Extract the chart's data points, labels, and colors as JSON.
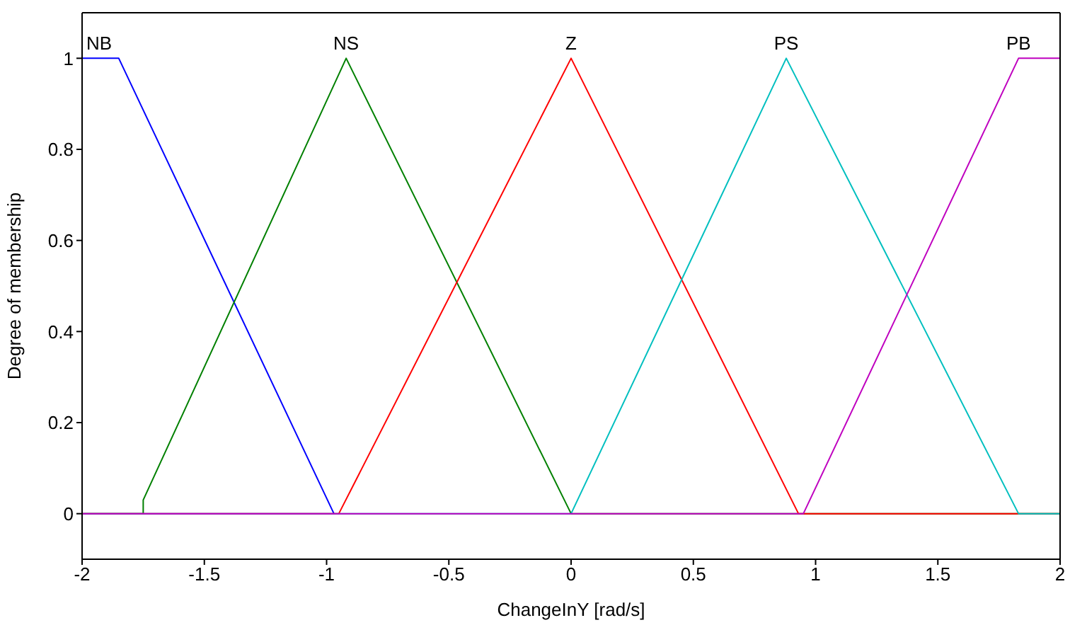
{
  "chart_data": {
    "type": "line",
    "xlabel": "ChangeInY  [rad/s]",
    "ylabel": "Degree of membership",
    "xlim": [
      -2,
      2
    ],
    "xticks": [
      -2,
      -1.5,
      -1,
      -0.5,
      0,
      0.5,
      1,
      1.5,
      2
    ],
    "ylim": [
      -0.1,
      1.1
    ],
    "yticks": [
      0,
      0.2,
      0.4,
      0.6,
      0.8,
      1
    ],
    "grid": false,
    "legend": false,
    "marker": "none",
    "line_style": "solid",
    "series": [
      {
        "name": "NB",
        "color": "#0000ff",
        "x": [
          -2,
          -1.85,
          -0.97
        ],
        "values": [
          1,
          1,
          0
        ]
      },
      {
        "name": "NS",
        "color": "#008000",
        "x": [
          -2,
          -1.75,
          -1.75,
          -0.92,
          0,
          2
        ],
        "values": [
          0,
          0,
          0.03,
          1,
          0,
          0
        ]
      },
      {
        "name": "Z",
        "color": "#ff0000",
        "x": [
          -2,
          -0.95,
          0,
          0.93,
          2
        ],
        "values": [
          0,
          0,
          1,
          0,
          0
        ]
      },
      {
        "name": "PS",
        "color": "#00bfbf",
        "x": [
          -2,
          0,
          0.88,
          1.83,
          2
        ],
        "values": [
          0,
          0,
          1,
          0,
          0
        ]
      },
      {
        "name": "PB",
        "color": "#bf00bf",
        "x": [
          -2,
          0.95,
          1.83,
          2
        ],
        "values": [
          0,
          0,
          1,
          1
        ]
      }
    ]
  }
}
